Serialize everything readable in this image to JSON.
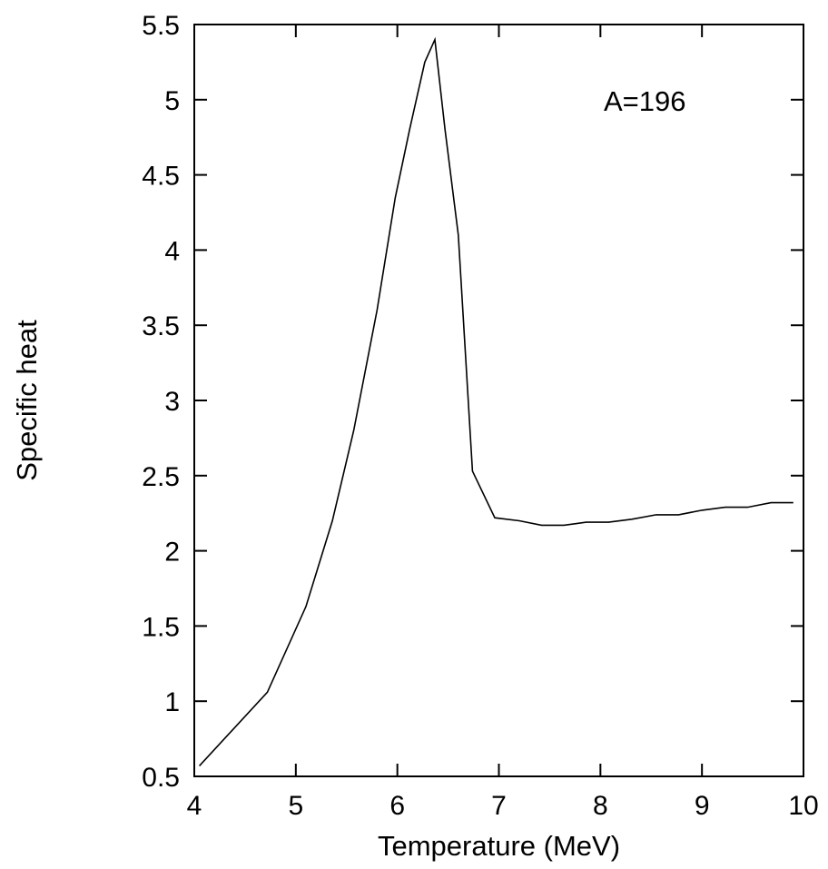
{
  "chart_data": {
    "type": "line",
    "xlabel": "Temperature (MeV)",
    "ylabel": "Specific heat",
    "xlim": [
      4,
      10
    ],
    "ylim": [
      0.5,
      5.5
    ],
    "xticks": [
      4,
      5,
      6,
      7,
      8,
      9,
      10
    ],
    "yticks": [
      0.5,
      1,
      1.5,
      2,
      2.5,
      3,
      3.5,
      4,
      4.5,
      5,
      5.5
    ],
    "xtick_labels": [
      "4",
      "5",
      "6",
      "7",
      "8",
      "9",
      "10"
    ],
    "ytick_labels": [
      "0.5",
      "1",
      "1.5",
      "2",
      "2.5",
      "3",
      "3.5",
      "4",
      "4.5",
      "5",
      "5.5"
    ],
    "annotation": "A=196",
    "grid": false,
    "series": [
      {
        "x": [
          4.05,
          4.72,
          5.1,
          5.36,
          5.57,
          5.8,
          5.98,
          6.12,
          6.27,
          6.37,
          6.47,
          6.6,
          6.74,
          6.96,
          7.2,
          7.42,
          7.64,
          7.86,
          8.08,
          8.31,
          8.55,
          8.77,
          9.0,
          9.23,
          9.45,
          9.68,
          9.9
        ],
        "y": [
          0.57,
          1.06,
          1.63,
          2.2,
          2.8,
          3.6,
          4.35,
          4.8,
          5.25,
          5.4,
          4.8,
          4.1,
          2.53,
          2.22,
          2.2,
          2.17,
          2.17,
          2.19,
          2.19,
          2.21,
          2.24,
          2.24,
          2.27,
          2.29,
          2.29,
          2.32,
          2.32
        ]
      }
    ]
  }
}
